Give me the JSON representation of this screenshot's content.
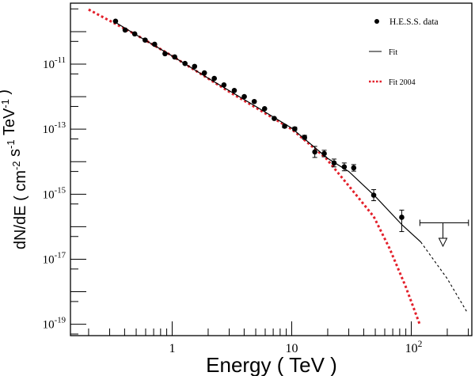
{
  "chart_data": {
    "type": "scatter",
    "title": "",
    "xlabel": "Energy ( TeV )",
    "ylabel": {
      "parts": [
        {
          "t": "dN/dE ( cm",
          "sup": "-2"
        },
        {
          "t": " s",
          "sup": "-1"
        },
        {
          "t": " TeV",
          "sup": "-1"
        },
        {
          "t": " )",
          "sup": ""
        }
      ]
    },
    "x_scale": "log",
    "y_scale": "log",
    "xlim": [
      0.141,
      321
    ],
    "ylim_log10": [
      -19.35,
      -9.125
    ],
    "x_ticks": [
      {
        "value": 1,
        "label": "1",
        "exp": ""
      },
      {
        "value": 10,
        "label": "10",
        "exp": ""
      },
      {
        "value": 100,
        "label": "10",
        "exp": "2"
      }
    ],
    "y_ticks": [
      {
        "log10": -11,
        "label": "10",
        "exp": "-11"
      },
      {
        "log10": -13,
        "label": "10",
        "exp": "-13"
      },
      {
        "log10": -15,
        "label": "10",
        "exp": "-15"
      },
      {
        "log10": -17,
        "label": "10",
        "exp": "-17"
      },
      {
        "log10": -19,
        "label": "10",
        "exp": "-19"
      }
    ],
    "legend": {
      "placement": "top-right",
      "entries": [
        {
          "label": "H.E.S.S. data",
          "style": "marker"
        },
        {
          "label": "Fit",
          "style": "solid"
        },
        {
          "label": "Fit 2004",
          "style": "dotted-red"
        }
      ]
    },
    "colors": {
      "data": "#000000",
      "fit": "#000000",
      "fit2004": "#e3202b"
    },
    "series": [
      {
        "name": "H.E.S.S. data",
        "columns": [
          "energy_TeV",
          "log10_flux",
          "err_down_log10",
          "err_up_log10"
        ],
        "points": [
          [
            0.336,
            -9.68,
            0,
            0
          ],
          [
            0.404,
            -9.95,
            0,
            0
          ],
          [
            0.486,
            -10.07,
            0,
            0
          ],
          [
            0.594,
            -10.26,
            0,
            0
          ],
          [
            0.713,
            -10.39,
            0,
            0
          ],
          [
            0.871,
            -10.68,
            0,
            0
          ],
          [
            1.05,
            -10.78,
            0,
            0
          ],
          [
            1.28,
            -10.98,
            0,
            0
          ],
          [
            1.54,
            -11.07,
            0,
            0
          ],
          [
            1.86,
            -11.27,
            0,
            0
          ],
          [
            2.25,
            -11.44,
            0,
            0
          ],
          [
            2.71,
            -11.64,
            0,
            0
          ],
          [
            3.31,
            -11.81,
            0,
            0
          ],
          [
            4.01,
            -12.0,
            0,
            0
          ],
          [
            4.86,
            -12.15,
            0,
            0
          ],
          [
            5.93,
            -12.37,
            0,
            0
          ],
          [
            7.14,
            -12.67,
            0,
            0
          ],
          [
            8.72,
            -12.91,
            0.05,
            0.05
          ],
          [
            10.6,
            -12.99,
            0.05,
            0.05
          ],
          [
            12.8,
            -13.25,
            0.06,
            0.06
          ],
          [
            15.6,
            -13.7,
            0.17,
            0.17
          ],
          [
            18.7,
            -13.75,
            0.1,
            0.1
          ],
          [
            22.6,
            -14.04,
            0.12,
            0.12
          ],
          [
            27.5,
            -14.16,
            0.12,
            0.12
          ],
          [
            33.0,
            -14.19,
            0.1,
            0.1
          ],
          [
            48.5,
            -15.03,
            0.17,
            0.17
          ],
          [
            83.2,
            -15.71,
            0.44,
            0.22
          ]
        ],
        "upper_limit": {
          "energy_TeV": 184,
          "energy_range_TeV": [
            118,
            301
          ],
          "log10_flux": -15.88,
          "arrow_to_log10": -16.6
        }
      },
      {
        "name": "Fit",
        "points": [
          [
            0.33,
            -9.7
          ],
          [
            0.5,
            -10.1
          ],
          [
            1,
            -10.75
          ],
          [
            2,
            -11.43
          ],
          [
            5,
            -12.3
          ],
          [
            10,
            -12.97
          ],
          [
            20,
            -13.9
          ],
          [
            30,
            -14.3
          ],
          [
            50,
            -15.07
          ],
          [
            83,
            -15.93
          ],
          [
            120,
            -16.47
          ]
        ],
        "extrapolation": [
          [
            120,
            -16.47
          ],
          [
            200,
            -17.6
          ],
          [
            290,
            -18.6
          ]
        ]
      },
      {
        "name": "Fit 2004",
        "points": [
          [
            0.2,
            -9.32
          ],
          [
            0.5,
            -10.1
          ],
          [
            1,
            -10.75
          ],
          [
            3,
            -11.85
          ],
          [
            10,
            -13.0
          ],
          [
            19.3,
            -13.89
          ],
          [
            30.6,
            -14.78
          ],
          [
            48.5,
            -15.69
          ],
          [
            66,
            -16.68
          ],
          [
            89.7,
            -17.84
          ],
          [
            118,
            -19.02
          ]
        ]
      }
    ]
  }
}
